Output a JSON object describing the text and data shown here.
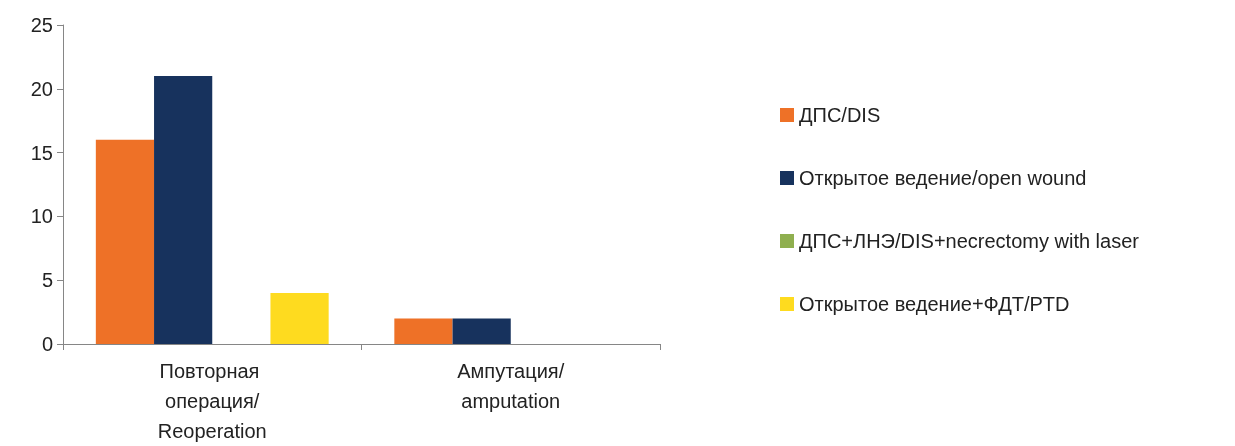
{
  "chart_data": {
    "type": "bar",
    "categories": [
      "Повторная операция/Reoperation",
      "Ампутация/amputation"
    ],
    "series": [
      {
        "name": "ДПС/DIS",
        "color": "#ee7127",
        "values": [
          16,
          2
        ]
      },
      {
        "name": "Открытое ведение/open wound",
        "color": "#17325d",
        "values": [
          21,
          2
        ]
      },
      {
        "name": "ДПС+ЛНЭ/DIS+necrectomy with laser",
        "color": "#8faf4f",
        "values": [
          0,
          0
        ]
      },
      {
        "name": "Открытое ведение+ФДТ/PTD",
        "color": "#fedb1f",
        "values": [
          4,
          0
        ]
      }
    ],
    "ylim": [
      0,
      25
    ],
    "yticks": [
      0,
      5,
      10,
      15,
      20,
      25
    ],
    "grid": false,
    "legend": "right"
  }
}
